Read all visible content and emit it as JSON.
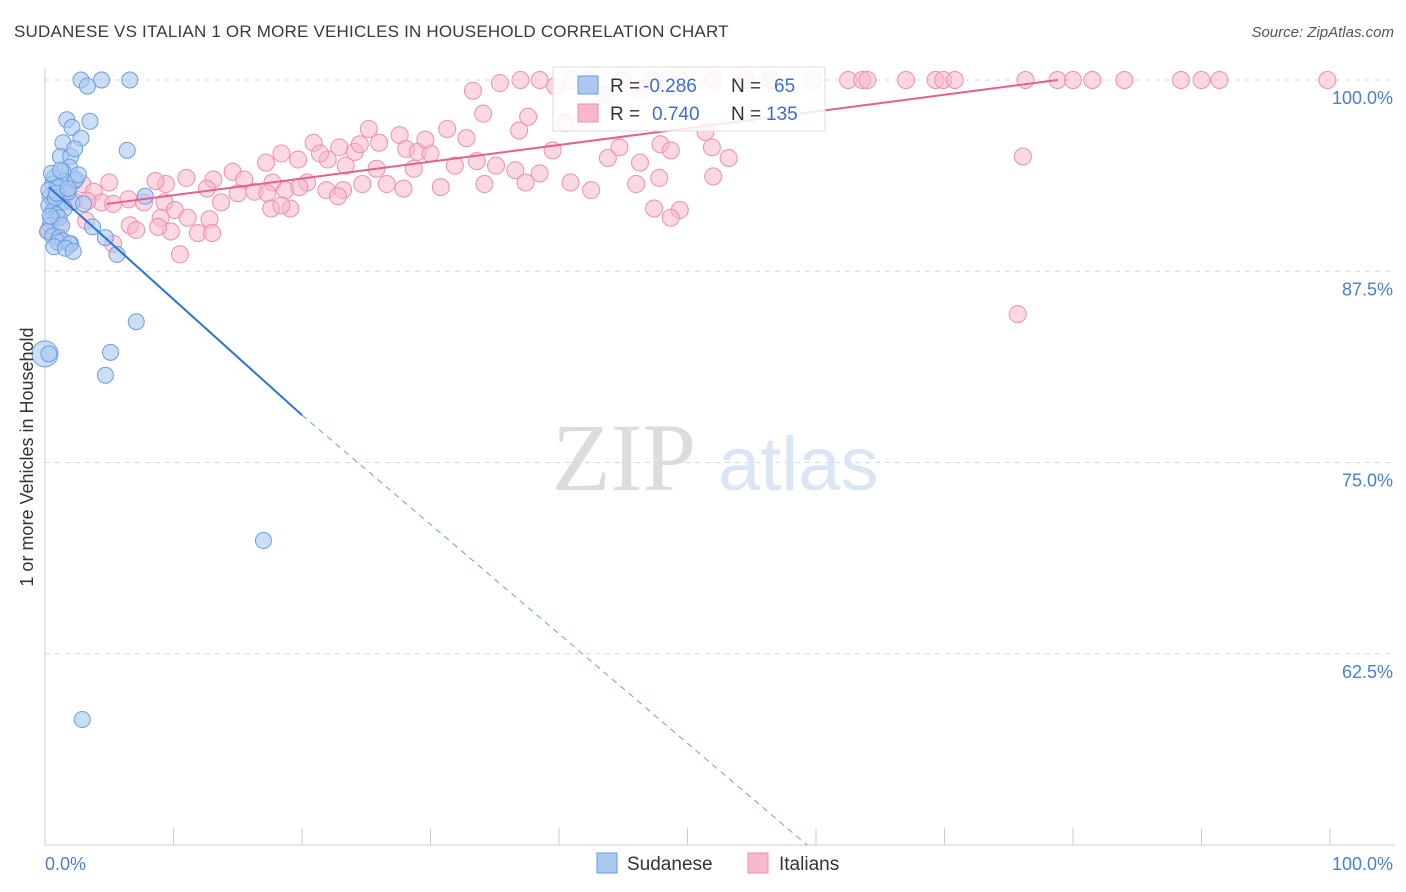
{
  "title": "SUDANESE VS ITALIAN 1 OR MORE VEHICLES IN HOUSEHOLD CORRELATION CHART",
  "source": "Source: ZipAtlas.com",
  "watermark": {
    "zip": "ZIP",
    "atlas": "atlas"
  },
  "colors": {
    "sudanese_fill": "#aac8f0",
    "sudanese_stroke": "#6a9ee0",
    "sudanese_line": "#2f74d0",
    "italians_fill": "#f7b8cc",
    "italians_stroke": "#ee8fae",
    "italians_line": "#e5608c",
    "grid": "#d8d8d8",
    "tick_text": "#4a7fcf"
  },
  "chart_data": {
    "type": "scatter",
    "title": "SUDANESE VS ITALIAN 1 OR MORE VEHICLES IN HOUSEHOLD CORRELATION CHART",
    "xlabel": "",
    "ylabel": "1 or more Vehicles in Household",
    "xlim": [
      0,
      100
    ],
    "ylim": [
      50,
      102.2
    ],
    "x_tick_labels": [
      "0.0%",
      "100.0%"
    ],
    "y_ticks": [
      100,
      87.5,
      75,
      62.5
    ],
    "y_tick_labels": [
      "100.0%",
      "87.5%",
      "75.0%",
      "62.5%"
    ],
    "legend": {
      "stats": [
        {
          "r_label": "R =",
          "r_value": "-0.286",
          "n_label": "N =",
          "n_value": "65"
        },
        {
          "r_label": "R =",
          "r_value": "0.740",
          "n_label": "N =",
          "n_value": "135"
        }
      ],
      "bottom": [
        "Sudanese",
        "Italians"
      ]
    },
    "series": [
      {
        "name": "Sudanese",
        "r": -0.286,
        "n": 65,
        "trend": {
          "x0": 0.3,
          "y0": 93.0,
          "x1": 20.0,
          "y1": 78.1,
          "dashed_to_x": 59.3,
          "dashed_to_y": 50.0
        },
        "points": [
          [
            2.8,
            100
          ],
          [
            4.4,
            100
          ],
          [
            6.6,
            100
          ],
          [
            3.3,
            99.6
          ],
          [
            1.7,
            97.4
          ],
          [
            3.5,
            97.3
          ],
          [
            2.1,
            96.9
          ],
          [
            2.8,
            96.2
          ],
          [
            1.4,
            95.9
          ],
          [
            6.4,
            95.4
          ],
          [
            1.2,
            95.0
          ],
          [
            2.0,
            95.0
          ],
          [
            2.3,
            95.5
          ],
          [
            1.9,
            94.3
          ],
          [
            1.4,
            94.0
          ],
          [
            0.7,
            93.6
          ],
          [
            1.5,
            93.4
          ],
          [
            0.6,
            93.2
          ],
          [
            2.3,
            93.4
          ],
          [
            1.0,
            93.0
          ],
          [
            1.7,
            92.6
          ],
          [
            0.4,
            92.4
          ],
          [
            7.8,
            92.4
          ],
          [
            0.7,
            92.1
          ],
          [
            1.3,
            92.0
          ],
          [
            2.1,
            92.0
          ],
          [
            0.3,
            91.8
          ],
          [
            1.5,
            91.6
          ],
          [
            0.6,
            91.4
          ],
          [
            0.9,
            91.2
          ],
          [
            0.5,
            90.9
          ],
          [
            1.1,
            91.0
          ],
          [
            3.7,
            90.4
          ],
          [
            0.4,
            90.5
          ],
          [
            1.3,
            90.5
          ],
          [
            0.2,
            90.1
          ],
          [
            0.6,
            89.8
          ],
          [
            1.1,
            89.7
          ],
          [
            1.4,
            89.5
          ],
          [
            2.0,
            89.3
          ],
          [
            4.7,
            89.7
          ],
          [
            1.0,
            89.4
          ],
          [
            1.9,
            89.3
          ],
          [
            0.7,
            89.1
          ],
          [
            1.6,
            89.0
          ],
          [
            2.2,
            88.8
          ],
          [
            5.6,
            88.6
          ],
          [
            0.3,
            92.8
          ],
          [
            0.8,
            92.3
          ],
          [
            1.8,
            92.7
          ],
          [
            2.4,
            93.5
          ],
          [
            0.5,
            93.9
          ],
          [
            1.2,
            94.1
          ],
          [
            2.6,
            93.8
          ],
          [
            0.9,
            92.6
          ],
          [
            7.1,
            84.2
          ],
          [
            5.1,
            82.2
          ],
          [
            0.0,
            82.1
          ],
          [
            0.3,
            82.1
          ],
          [
            4.7,
            80.7
          ],
          [
            17.0,
            69.9
          ],
          [
            2.9,
            58.2
          ],
          [
            1.8,
            92.9
          ],
          [
            0.4,
            91.1
          ],
          [
            3.0,
            91.9
          ]
        ]
      },
      {
        "name": "Italians",
        "r": 0.74,
        "n": 135,
        "trend": {
          "x0": 4.8,
          "y0": 91.9,
          "x1": 78.8,
          "y1": 100.0
        },
        "points": [
          [
            41.0,
            100
          ],
          [
            42.5,
            100
          ],
          [
            45.0,
            100
          ],
          [
            47.2,
            100
          ],
          [
            48.5,
            100
          ],
          [
            49.4,
            100
          ],
          [
            52.0,
            100
          ],
          [
            54.5,
            100
          ],
          [
            56.5,
            100
          ],
          [
            59.8,
            100
          ],
          [
            62.5,
            100
          ],
          [
            63.6,
            100
          ],
          [
            64.0,
            100
          ],
          [
            67.0,
            100
          ],
          [
            69.3,
            100
          ],
          [
            69.9,
            100
          ],
          [
            70.8,
            100
          ],
          [
            76.3,
            100
          ],
          [
            78.8,
            100
          ],
          [
            80.0,
            100
          ],
          [
            81.5,
            100
          ],
          [
            84.0,
            100
          ],
          [
            88.4,
            100
          ],
          [
            90.0,
            100
          ],
          [
            91.4,
            100
          ],
          [
            99.8,
            100
          ],
          [
            33.3,
            99.3
          ],
          [
            35.4,
            99.8
          ],
          [
            37.0,
            100
          ],
          [
            38.5,
            100
          ],
          [
            39.7,
            99.6
          ],
          [
            43.6,
            99.0
          ],
          [
            46.3,
            99.4
          ],
          [
            34.1,
            97.8
          ],
          [
            37.6,
            97.6
          ],
          [
            40.5,
            97.2
          ],
          [
            36.9,
            96.7
          ],
          [
            31.3,
            96.8
          ],
          [
            25.2,
            96.8
          ],
          [
            32.8,
            96.2
          ],
          [
            27.6,
            96.4
          ],
          [
            26.0,
            95.9
          ],
          [
            28.1,
            95.5
          ],
          [
            29.0,
            95.3
          ],
          [
            30.0,
            95.2
          ],
          [
            22.9,
            95.6
          ],
          [
            20.9,
            95.9
          ],
          [
            24.1,
            95.3
          ],
          [
            18.4,
            95.2
          ],
          [
            19.7,
            94.8
          ],
          [
            22.0,
            94.8
          ],
          [
            17.2,
            94.6
          ],
          [
            23.4,
            94.4
          ],
          [
            25.8,
            94.2
          ],
          [
            28.7,
            94.2
          ],
          [
            31.9,
            94.4
          ],
          [
            33.6,
            94.7
          ],
          [
            35.1,
            94.4
          ],
          [
            36.6,
            94.1
          ],
          [
            38.5,
            93.9
          ],
          [
            39.5,
            95.4
          ],
          [
            43.8,
            94.9
          ],
          [
            46.3,
            94.6
          ],
          [
            44.7,
            95.6
          ],
          [
            47.9,
            95.8
          ],
          [
            51.9,
            95.6
          ],
          [
            53.2,
            94.9
          ],
          [
            47.8,
            93.6
          ],
          [
            52.0,
            93.7
          ],
          [
            14.6,
            94.0
          ],
          [
            13.1,
            93.5
          ],
          [
            15.5,
            93.5
          ],
          [
            17.7,
            93.3
          ],
          [
            20.4,
            93.3
          ],
          [
            24.7,
            93.2
          ],
          [
            26.6,
            93.2
          ],
          [
            21.9,
            92.8
          ],
          [
            23.2,
            92.8
          ],
          [
            27.9,
            92.9
          ],
          [
            30.8,
            93.0
          ],
          [
            34.2,
            93.2
          ],
          [
            37.4,
            93.3
          ],
          [
            40.9,
            93.3
          ],
          [
            42.5,
            92.8
          ],
          [
            46.0,
            93.2
          ],
          [
            9.4,
            93.2
          ],
          [
            8.6,
            93.4
          ],
          [
            11.0,
            93.6
          ],
          [
            12.6,
            92.9
          ],
          [
            15.0,
            92.6
          ],
          [
            16.3,
            92.7
          ],
          [
            17.3,
            92.6
          ],
          [
            18.7,
            92.8
          ],
          [
            19.8,
            93.0
          ],
          [
            2.9,
            93.2
          ],
          [
            3.8,
            92.7
          ],
          [
            4.4,
            92.0
          ],
          [
            5.3,
            91.9
          ],
          [
            6.5,
            92.2
          ],
          [
            1.6,
            92.5
          ],
          [
            2.2,
            92.1
          ],
          [
            3.3,
            92.1
          ],
          [
            5.0,
            93.3
          ],
          [
            7.7,
            92.0
          ],
          [
            9.3,
            92.0
          ],
          [
            10.1,
            91.5
          ],
          [
            13.7,
            92.0
          ],
          [
            17.6,
            91.6
          ],
          [
            19.1,
            91.6
          ],
          [
            18.4,
            91.8
          ],
          [
            22.8,
            92.4
          ],
          [
            47.4,
            91.6
          ],
          [
            49.4,
            91.5
          ],
          [
            48.7,
            91.0
          ],
          [
            9.0,
            91.0
          ],
          [
            11.1,
            91.0
          ],
          [
            12.8,
            90.9
          ],
          [
            3.2,
            90.8
          ],
          [
            6.6,
            90.5
          ],
          [
            7.1,
            90.2
          ],
          [
            9.8,
            90.1
          ],
          [
            11.9,
            90.0
          ],
          [
            13.0,
            90.0
          ],
          [
            8.8,
            90.4
          ],
          [
            0.3,
            90.2
          ],
          [
            1.1,
            90.6
          ],
          [
            5.3,
            89.3
          ],
          [
            10.5,
            88.6
          ],
          [
            51.4,
            96.6
          ],
          [
            48.7,
            95.4
          ],
          [
            76.1,
            95.0
          ],
          [
            75.7,
            84.7
          ],
          [
            21.4,
            95.2
          ],
          [
            24.5,
            95.8
          ],
          [
            29.6,
            96.1
          ]
        ]
      }
    ]
  }
}
